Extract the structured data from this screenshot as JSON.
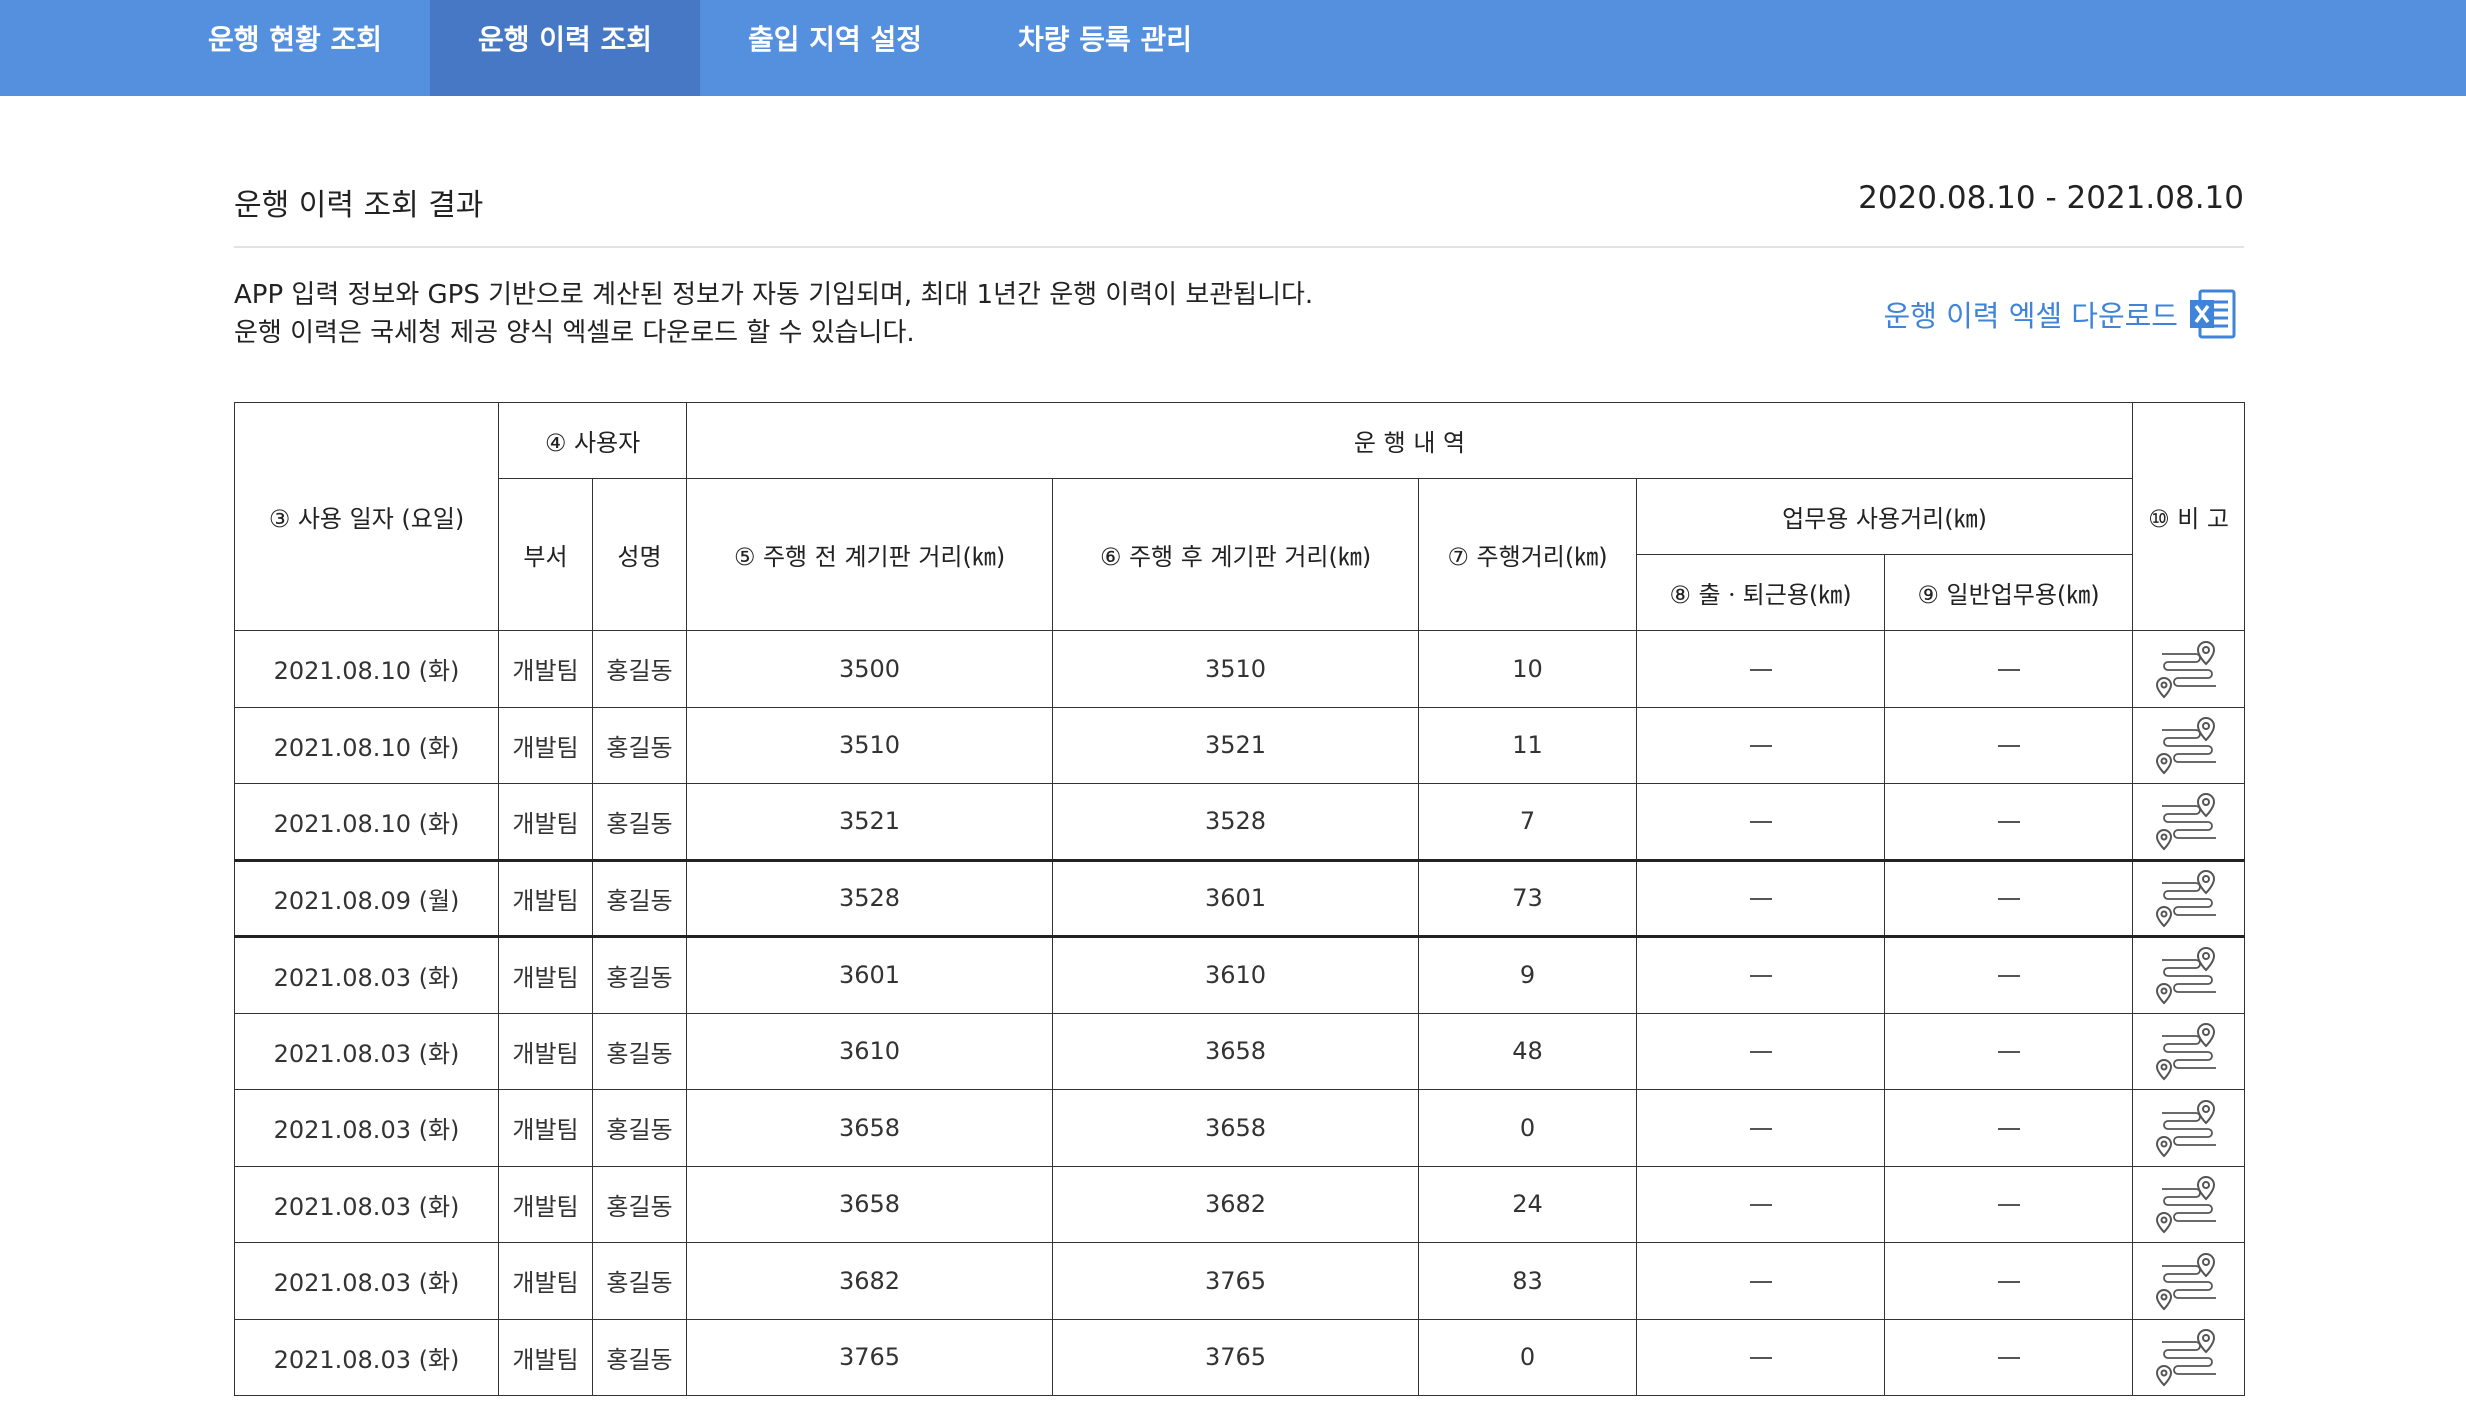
{
  "nav": {
    "tabs": [
      {
        "label": "운행 현황 조회",
        "active": false
      },
      {
        "label": "운행 이력 조회",
        "active": true
      },
      {
        "label": "출입 지역 설정",
        "active": false
      },
      {
        "label": "차량 등록 관리",
        "active": false
      }
    ]
  },
  "header": {
    "title": "운행 이력 조회 결과",
    "date_range": "2020.08.10 - 2021.08.10"
  },
  "description": {
    "line1": "APP 입력 정보와 GPS 기반으로 계산된 정보가 자동 기입되며, 최대 1년간 운행 이력이 보관됩니다.",
    "line2": "운행 이력은 국세청 제공 양식 엑셀로 다운로드 할 수 있습니다."
  },
  "download": {
    "label": "운행 이력 엑셀 다운로드",
    "icon": "excel-icon"
  },
  "table": {
    "headers": {
      "date": "③ 사용 일자 (요일)",
      "user": "④ 사용자",
      "dept": "부서",
      "name": "성명",
      "history": "운 행 내 역",
      "before": "⑤ 주행 전 계기판 거리(㎞)",
      "after": "⑥ 주행 후 계기판 거리(㎞)",
      "distance": "⑦ 주행거리(㎞)",
      "business": "업무용 사용거리(㎞)",
      "commute": "⑧ 출ㆍ퇴근용(㎞)",
      "general": "⑨ 일반업무용(㎞)",
      "note": "⑩ 비 고"
    },
    "rows": [
      {
        "date": "2021.08.10 (화)",
        "dept": "개발팀",
        "name": "홍길동",
        "before": "3500",
        "after": "3510",
        "distance": "10",
        "group_start": false
      },
      {
        "date": "2021.08.10 (화)",
        "dept": "개발팀",
        "name": "홍길동",
        "before": "3510",
        "after": "3521",
        "distance": "11",
        "group_start": false
      },
      {
        "date": "2021.08.10 (화)",
        "dept": "개발팀",
        "name": "홍길동",
        "before": "3521",
        "after": "3528",
        "distance": "7",
        "group_start": false
      },
      {
        "date": "2021.08.09 (월)",
        "dept": "개발팀",
        "name": "홍길동",
        "before": "3528",
        "after": "3601",
        "distance": "73",
        "group_start": true
      },
      {
        "date": "2021.08.03 (화)",
        "dept": "개발팀",
        "name": "홍길동",
        "before": "3601",
        "after": "3610",
        "distance": "9",
        "group_start": true
      },
      {
        "date": "2021.08.03 (화)",
        "dept": "개발팀",
        "name": "홍길동",
        "before": "3610",
        "after": "3658",
        "distance": "48",
        "group_start": false
      },
      {
        "date": "2021.08.03 (화)",
        "dept": "개발팀",
        "name": "홍길동",
        "before": "3658",
        "after": "3658",
        "distance": "0",
        "group_start": false
      },
      {
        "date": "2021.08.03 (화)",
        "dept": "개발팀",
        "name": "홍길동",
        "before": "3658",
        "after": "3682",
        "distance": "24",
        "group_start": false
      },
      {
        "date": "2021.08.03 (화)",
        "dept": "개발팀",
        "name": "홍길동",
        "before": "3682",
        "after": "3765",
        "distance": "83",
        "group_start": false
      },
      {
        "date": "2021.08.03 (화)",
        "dept": "개발팀",
        "name": "홍길동",
        "before": "3765",
        "after": "3765",
        "distance": "0",
        "group_start": false
      }
    ],
    "empty_icon": "dash-icon",
    "note_icon": "route-map-icon"
  },
  "colors": {
    "nav_bg": "#5590df",
    "nav_active": "#4678c6",
    "link": "#3f84d8",
    "excel_green": "#1f7a45"
  }
}
